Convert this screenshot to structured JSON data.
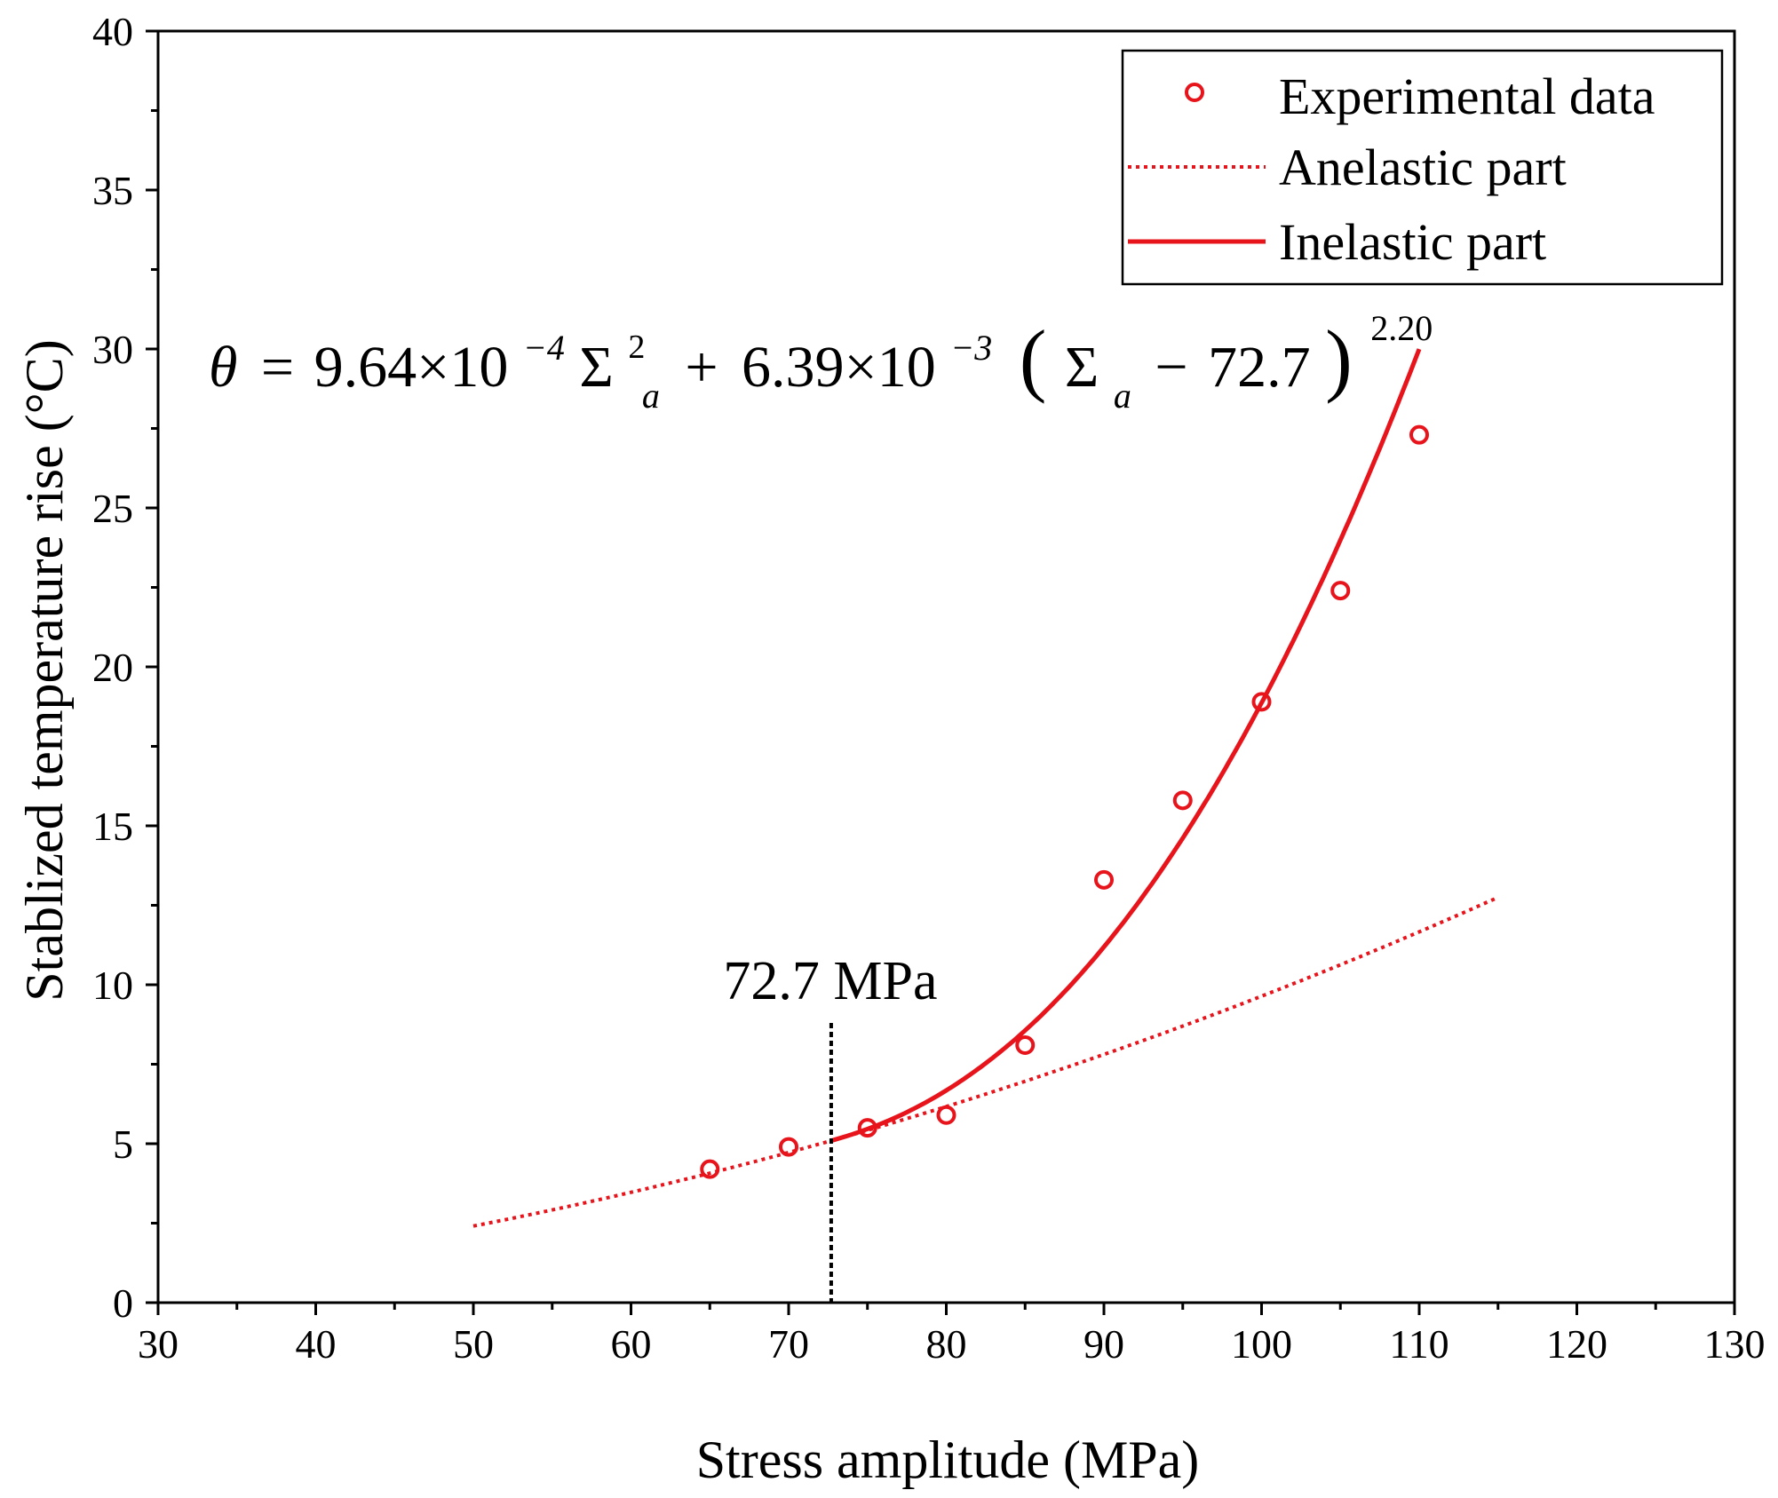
{
  "chart_data": {
    "type": "scatter",
    "title": "",
    "xlabel": "Stress amplitude (MPa)",
    "ylabel": "Stablized temperature rise (°C)",
    "xlim": [
      30,
      130
    ],
    "ylim": [
      0,
      40
    ],
    "x_ticks": [
      30,
      40,
      50,
      60,
      70,
      80,
      90,
      100,
      110,
      120,
      130
    ],
    "y_ticks": [
      0,
      5,
      10,
      15,
      20,
      25,
      30,
      35,
      40
    ],
    "grid": false,
    "legend_position": "top-right",
    "colors": {
      "series": "#e8141c",
      "axis": "#000000"
    },
    "series": [
      {
        "name": "Experimental data",
        "kind": "markers",
        "marker": "open-circle",
        "x": [
          65,
          70,
          75,
          80,
          85,
          90,
          95,
          100,
          105,
          110
        ],
        "y": [
          4.2,
          4.9,
          5.5,
          5.9,
          8.1,
          13.3,
          15.8,
          18.9,
          22.4,
          27.3
        ]
      },
      {
        "name": "Anelastic part",
        "kind": "dotted-line",
        "formula": "9.64e-4 * x^2",
        "x_range": [
          50,
          115
        ]
      },
      {
        "name": "Inelastic part",
        "kind": "solid-line",
        "formula": "9.64e-4 * x^2 + 6.39e-3 * (x - 72.7)^2.20",
        "x_range": [
          72.7,
          110
        ]
      }
    ],
    "threshold": {
      "x": 72.7,
      "label": "72.7 MPa"
    },
    "equation": {
      "theta": "θ",
      "eq": "=",
      "coef1": "9.64×10",
      "exp1": "−4",
      "sigma": "Σ",
      "sub": "a",
      "sq": "2",
      "plus": "+",
      "coef2": "6.39×10",
      "exp2": "−3",
      "paren_open": "(",
      "minus": "−",
      "offset": "72.7",
      "paren_close": ")",
      "power": "2.20"
    }
  }
}
